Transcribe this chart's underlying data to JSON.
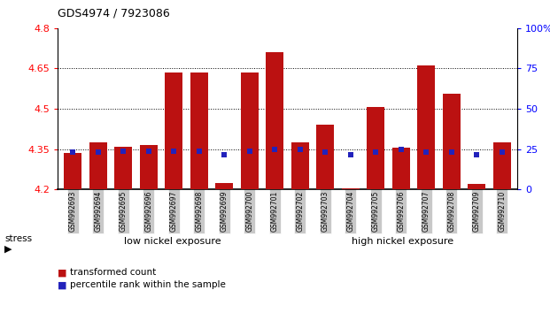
{
  "title": "GDS4974 / 7923086",
  "samples": [
    "GSM992693",
    "GSM992694",
    "GSM992695",
    "GSM992696",
    "GSM992697",
    "GSM992698",
    "GSM992699",
    "GSM992700",
    "GSM992701",
    "GSM992702",
    "GSM992703",
    "GSM992704",
    "GSM992705",
    "GSM992706",
    "GSM992707",
    "GSM992708",
    "GSM992709",
    "GSM992710"
  ],
  "transformed_count": [
    4.335,
    4.375,
    4.36,
    4.365,
    4.635,
    4.635,
    4.225,
    4.635,
    4.71,
    4.375,
    4.44,
    4.205,
    4.505,
    4.355,
    4.66,
    4.555,
    4.22,
    4.375
  ],
  "percentile_rank_y": [
    4.3395,
    4.3395,
    4.342,
    4.342,
    4.342,
    4.342,
    4.33,
    4.343,
    4.35,
    4.35,
    4.34,
    4.33,
    4.34,
    4.348,
    4.34,
    4.34,
    4.33,
    4.34
  ],
  "ymin": 4.2,
  "ymax": 4.8,
  "yticks": [
    4.2,
    4.35,
    4.5,
    4.65,
    4.8
  ],
  "ytick_labels": [
    "4.2",
    "4.35",
    "4.5",
    "4.65",
    "4.8"
  ],
  "right_ytick_percents": [
    0,
    25,
    50,
    75,
    100
  ],
  "right_ytick_labels": [
    "0",
    "25",
    "50",
    "75",
    "100%"
  ],
  "gridlines": [
    4.35,
    4.5,
    4.65
  ],
  "low_nickel_count": 9,
  "group_labels": [
    "low nickel exposure",
    "high nickel exposure"
  ],
  "low_color": "#90EE90",
  "high_color": "#3CB371",
  "bar_color": "#BB1111",
  "pct_color": "#2222BB",
  "bg_color": "#ffffff",
  "tick_bg": "#c8c8c8",
  "legend_labels": [
    "transformed count",
    "percentile rank within the sample"
  ]
}
